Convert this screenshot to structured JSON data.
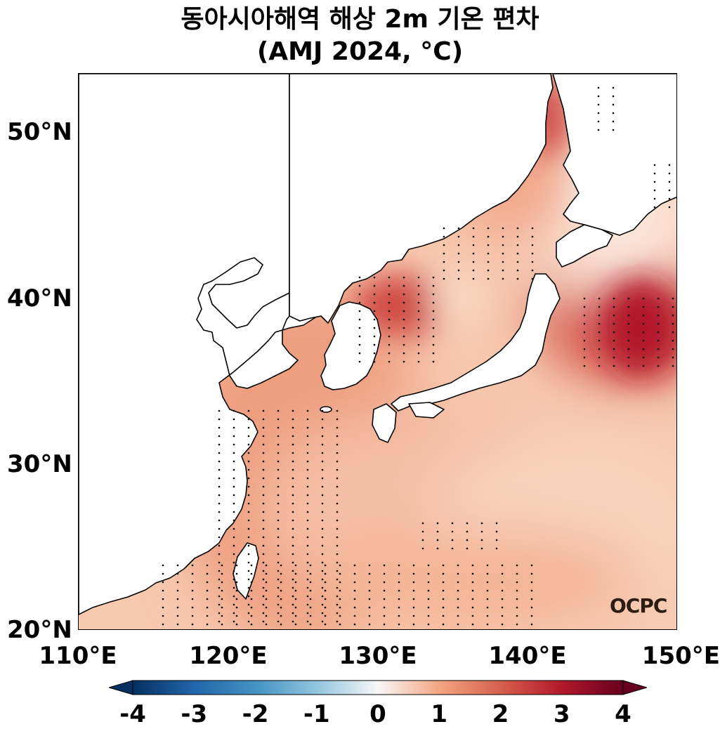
{
  "title_line1": "동아시아해역 해상 2m 기온 편차",
  "title_line2": "(AMJ 2024, °C)",
  "map": {
    "lon_range": [
      110,
      150
    ],
    "lat_range": [
      20,
      53.5
    ],
    "lat_ticks": [
      "50°N",
      "40°N",
      "30°N",
      "20°N"
    ],
    "lon_ticks": [
      "110°E",
      "120°E",
      "130°E",
      "140°E",
      "150°E"
    ],
    "ocean_base_color": "#f7c9af",
    "land_color": "#ffffff",
    "coastline_color": "#000000"
  },
  "colorbar": {
    "ticks": [
      "-4",
      "-3",
      "-2",
      "-1",
      "0",
      "1",
      "2",
      "3",
      "4"
    ],
    "min": -4,
    "max": 4,
    "extend": "both",
    "colors": [
      "#053061",
      "#2166ac",
      "#4393c3",
      "#92c5de",
      "#f7f7f7",
      "#fddbc7",
      "#f4a582",
      "#d6604d",
      "#b2182b",
      "#67001f"
    ]
  },
  "logo_text": "OCPC"
}
